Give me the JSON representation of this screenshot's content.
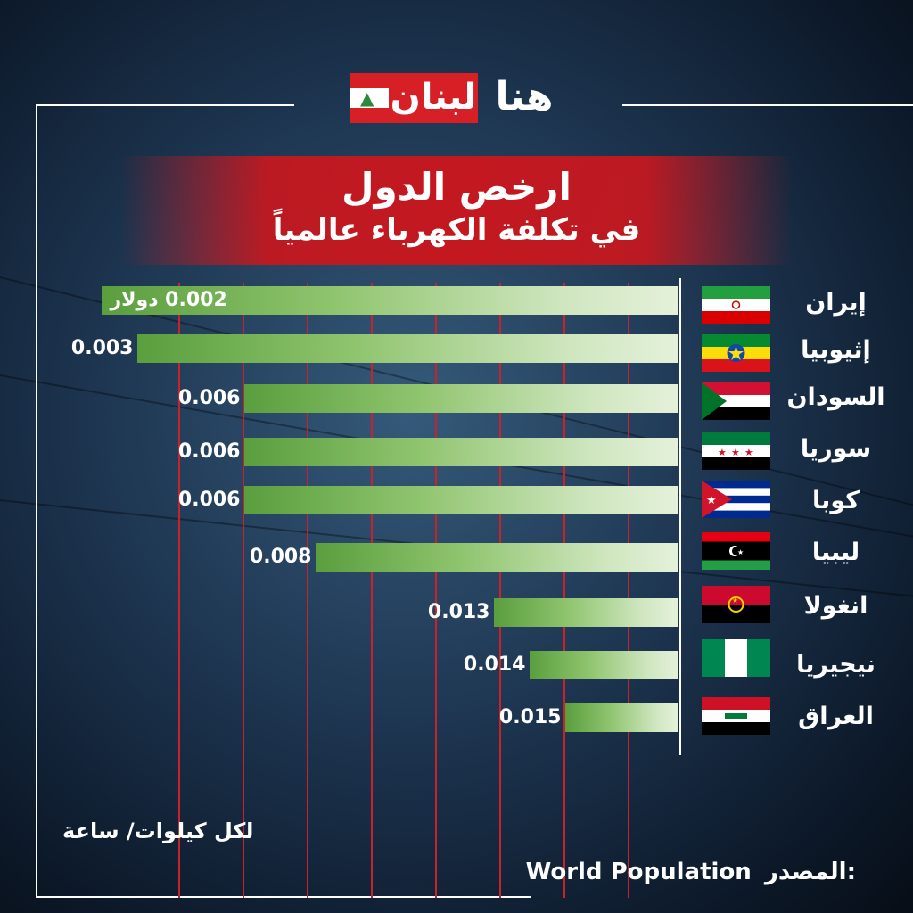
{
  "logo": {
    "red_part": "لبنان",
    "white_part": "هنا",
    "cedar_icon": "cedar-tree-icon"
  },
  "header": {
    "title": "ارخص الدول",
    "subtitle": "في تكلفة الكهرباء عالمياً"
  },
  "footer": {
    "unit_label": "لكل كيلوات/ ساعة",
    "source_label": "المصدر:",
    "source_value": "World Population"
  },
  "colors": {
    "accent_red": "#c41820",
    "bar_green": "#5a9e3e",
    "bar_light": "#e4f1da"
  },
  "chart_data": {
    "type": "bar",
    "orientation": "horizontal",
    "categories": [
      "إيران",
      "إثيوبيا",
      "السودان",
      "سوريا",
      "كوبا",
      "ليبيا",
      "انغولا",
      "نيجيريا",
      "العراق"
    ],
    "values": [
      0.002,
      0.003,
      0.006,
      0.006,
      0.006,
      0.008,
      0.013,
      0.014,
      0.015
    ],
    "value_labels": [
      "0.002 دولار",
      "0.003",
      "0.006",
      "0.006",
      "0.006",
      "0.008",
      "0.013",
      "0.014",
      "0.015"
    ],
    "flags": [
      "iran-flag",
      "ethiopia-flag",
      "sudan-flag",
      "syria-flag",
      "cuba-flag",
      "libya-flag",
      "angola-flag",
      "nigeria-flag",
      "iraq-flag"
    ],
    "grid": true,
    "bar_direction": "right-to-left"
  }
}
